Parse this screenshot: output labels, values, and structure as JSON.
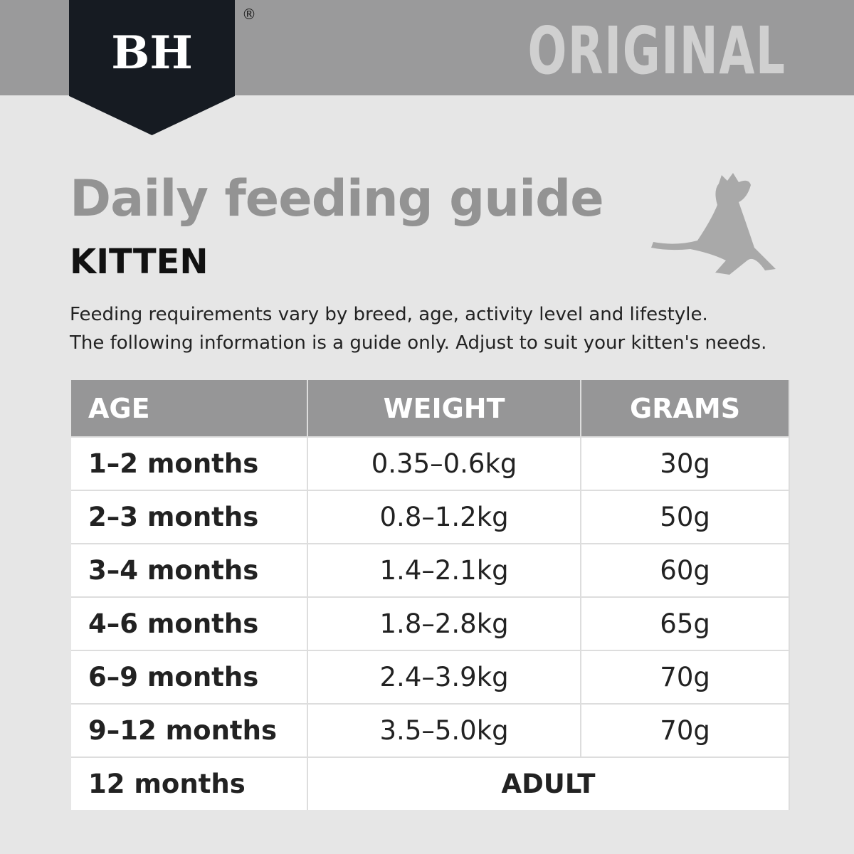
{
  "header": {
    "logo": "BH",
    "registered": "®",
    "variant": "ORIGINAL"
  },
  "title": "Daily feeding guide",
  "subtitle": "KITTEN",
  "description": [
    "Feeding requirements vary by breed, age, activity level and lifestyle.",
    "The following information is a guide only. Adjust to suit your kitten's needs."
  ],
  "table": {
    "headers": [
      "AGE",
      "WEIGHT",
      "GRAMS"
    ],
    "rows": [
      [
        "1–2 months",
        "0.35–0.6kg",
        "30g"
      ],
      [
        "2–3 months",
        "0.8–1.2kg",
        "50g"
      ],
      [
        "3–4 months",
        "1.4–2.1kg",
        "60g"
      ],
      [
        "4–6 months",
        "1.8–2.8kg",
        "65g"
      ],
      [
        "6–9 months",
        "2.4–3.9kg",
        "70g"
      ],
      [
        "9–12 months",
        "3.5–5.0kg",
        "70g"
      ]
    ],
    "last_row": [
      "12 months",
      "ADULT"
    ]
  }
}
